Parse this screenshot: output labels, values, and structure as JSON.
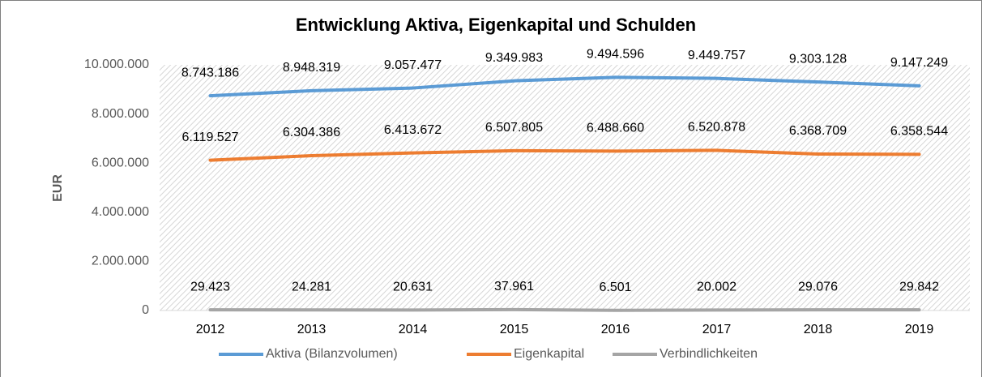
{
  "chart_data": {
    "type": "line",
    "title": "Entwicklung Aktiva, Eigenkapital und Schulden",
    "y_label": "EUR",
    "categories": [
      "2012",
      "2013",
      "2014",
      "2015",
      "2016",
      "2017",
      "2018",
      "2019"
    ],
    "series": [
      {
        "name": "Aktiva (Bilanzvolumen)",
        "color": "#5b9bd5",
        "values": [
          8743186,
          8948319,
          9057477,
          9349983,
          9494596,
          9449757,
          9303128,
          9147249
        ],
        "value_labels": [
          "8.743.186",
          "8.948.319",
          "9.057.477",
          "9.349.983",
          "9.494.596",
          "9.449.757",
          "9.303.128",
          "9.147.249"
        ]
      },
      {
        "name": "Eigenkapital",
        "color": "#ed7d31",
        "values": [
          6119527,
          6304386,
          6413672,
          6507805,
          6488660,
          6520878,
          6368709,
          6358544
        ],
        "value_labels": [
          "6.119.527",
          "6.304.386",
          "6.413.672",
          "6.507.805",
          "6.488.660",
          "6.520.878",
          "6.368.709",
          "6.358.544"
        ]
      },
      {
        "name": "Verbindlichkeiten",
        "color": "#a5a5a5",
        "values": [
          29423,
          24281,
          20631,
          37961,
          6501,
          20002,
          29076,
          29842
        ],
        "value_labels": [
          "29.423",
          "24.281",
          "20.631",
          "37.961",
          "6.501",
          "20.002",
          "29.076",
          "29.842"
        ]
      }
    ],
    "ylim": [
      0,
      10000000
    ],
    "yticks": [
      0,
      {
        "value": 2000000,
        "label": "2.000.000"
      },
      {
        "value": 4000000,
        "label": "4.000.000"
      },
      {
        "value": 6000000,
        "label": "6.000.000"
      },
      {
        "value": 8000000,
        "label": "8.000.000"
      },
      {
        "value": 10000000,
        "label": "10.000.000"
      }
    ],
    "legend": "bottom"
  }
}
